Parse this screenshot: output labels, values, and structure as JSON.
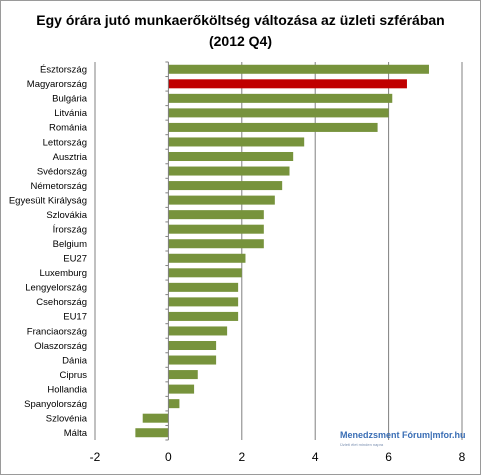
{
  "chart_data": {
    "type": "bar",
    "orientation": "horizontal",
    "title_line1": "Egy órára jutó munkaerőköltség változása az üzleti szférában",
    "title_line2": "(2012 Q4)",
    "categories": [
      "Észtország",
      "Magyarország",
      "Bulgária",
      "Litvánia",
      "Románia",
      "Lettország",
      "Ausztria",
      "Svédország",
      "Németország",
      "Egyesült Királyság",
      "Szlovákia",
      "Írország",
      "Belgium",
      "EU27",
      "Luxemburg",
      "Lengyelország",
      "Csehország",
      "EU17",
      "Franciaország",
      "Olaszország",
      "Dánia",
      "Ciprus",
      "Hollandia",
      "Spanyolország",
      "Szlovénia",
      "Málta"
    ],
    "values": [
      7.1,
      6.5,
      6.1,
      6.0,
      5.7,
      3.7,
      3.4,
      3.3,
      3.1,
      2.9,
      2.6,
      2.6,
      2.6,
      2.1,
      2.0,
      1.9,
      1.9,
      1.9,
      1.6,
      1.3,
      1.3,
      0.8,
      0.7,
      0.3,
      -0.7,
      -0.9
    ],
    "highlight_category": "Magyarország",
    "colors": {
      "bar": "#77933c",
      "highlight": "#c00000",
      "grid": "#808080"
    },
    "xlim": [
      -2,
      8
    ],
    "xticks": [
      -2,
      0,
      2,
      4,
      6,
      8
    ],
    "grid": true
  },
  "watermark": {
    "text": "Menedzsment Fórum|mfor.hu",
    "subtext": "Üzleti élet minden napra"
  }
}
